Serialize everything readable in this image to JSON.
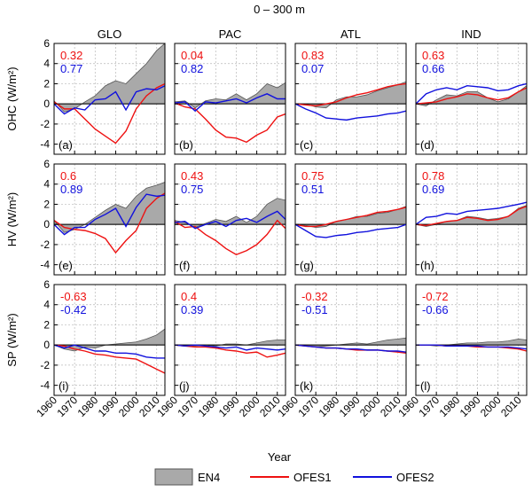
{
  "figure_title": "0 – 300 m",
  "xlabel": "Year",
  "colors": {
    "EN4_fill": "#a9a9a9",
    "EN4_edge": "#555555",
    "OFES1": "#ee1111",
    "OFES2": "#1111dd",
    "zero": "#000000",
    "grid": "#b8b8b8"
  },
  "legend": {
    "placement": "bottom-center",
    "en4": "EN4",
    "ofes1": "OFES1",
    "ofes2": "OFES2"
  },
  "chart_data": {
    "type": "line",
    "grid": true,
    "columns": [
      "GLO",
      "PAC",
      "ATL",
      "IND"
    ],
    "rows": [
      {
        "ylabel": "OHC (W/m²)",
        "ylim": [
          -5,
          6
        ],
        "yticks": [
          -4,
          -2,
          0,
          2,
          4,
          6
        ]
      },
      {
        "ylabel": "HV (W/m²)",
        "ylim": [
          -5,
          6
        ],
        "yticks": [
          -4,
          -2,
          0,
          2,
          4,
          6
        ]
      },
      {
        "ylabel": "SP (W/m²)",
        "ylim": [
          -5,
          6
        ],
        "yticks": [
          -4,
          -2,
          0,
          2,
          4,
          6
        ]
      }
    ],
    "x": [
      1960,
      1965,
      1970,
      1975,
      1980,
      1985,
      1990,
      1995,
      2000,
      2005,
      2010,
      2014
    ],
    "xlim": [
      1960,
      2014
    ],
    "xticks": [
      1960,
      1970,
      1980,
      1990,
      2000,
      2010
    ],
    "panels": [
      {
        "label": "(a)",
        "r1": "0.32",
        "r2": "0.77",
        "EN4": [
          0.3,
          -0.8,
          -0.5,
          0.2,
          0.8,
          1.8,
          2.3,
          2.0,
          3.0,
          4.0,
          5.3,
          6.0
        ],
        "OFES1": [
          0.2,
          -0.5,
          -0.5,
          -1.5,
          -2.5,
          -3.2,
          -3.9,
          -2.7,
          -0.5,
          0.8,
          1.6,
          2.0
        ],
        "OFES2": [
          0.0,
          -1.0,
          -0.4,
          -0.6,
          0.4,
          0.5,
          1.2,
          -0.6,
          1.2,
          1.5,
          1.4,
          1.8
        ]
      },
      {
        "label": "(b)",
        "r1": "0.04",
        "r2": "0.82",
        "EN4": [
          0.2,
          0.3,
          -0.4,
          0.3,
          0.5,
          0.4,
          1.0,
          0.4,
          1.0,
          2.0,
          1.6,
          2.1
        ],
        "OFES1": [
          0.1,
          -0.3,
          -0.5,
          -1.5,
          -2.6,
          -3.3,
          -3.4,
          -3.8,
          -3.1,
          -2.6,
          -1.3,
          -1.0
        ],
        "OFES2": [
          0.1,
          0.2,
          -0.7,
          0.2,
          0.1,
          0.3,
          0.5,
          0.1,
          0.6,
          1.0,
          0.5,
          0.5
        ]
      },
      {
        "label": "(c)",
        "r1": "0.83",
        "r2": "0.07",
        "EN4": [
          0.0,
          0.0,
          -0.3,
          -0.4,
          0.4,
          0.7,
          0.7,
          0.9,
          1.3,
          1.6,
          1.9,
          2.2
        ],
        "OFES1": [
          0.0,
          -0.1,
          -0.2,
          0.0,
          0.2,
          0.6,
          0.9,
          1.1,
          1.4,
          1.7,
          1.9,
          2.0
        ],
        "OFES2": [
          0.0,
          -0.5,
          -0.9,
          -1.4,
          -1.5,
          -1.6,
          -1.4,
          -1.3,
          -1.2,
          -1.0,
          -0.9,
          -0.7
        ]
      },
      {
        "label": "(d)",
        "r1": "0.63",
        "r2": "0.66",
        "EN4": [
          0.0,
          -0.2,
          0.4,
          0.9,
          0.8,
          1.2,
          1.2,
          0.6,
          0.2,
          0.5,
          1.2,
          1.8
        ],
        "OFES1": [
          0.0,
          0.1,
          0.2,
          0.5,
          0.7,
          1.0,
          0.9,
          0.6,
          0.4,
          0.6,
          1.2,
          1.6
        ],
        "OFES2": [
          0.0,
          1.0,
          1.4,
          1.6,
          1.4,
          1.8,
          1.7,
          1.6,
          1.3,
          1.4,
          1.8,
          2.0
        ]
      },
      {
        "label": "(e)",
        "r1": "0.6",
        "r2": "0.89",
        "EN4": [
          0.4,
          -0.8,
          -0.5,
          0.0,
          0.7,
          1.4,
          2.0,
          1.6,
          2.8,
          3.6,
          3.9,
          4.2
        ],
        "OFES1": [
          0.4,
          -0.3,
          -0.5,
          -0.6,
          -0.9,
          -1.4,
          -2.8,
          -1.6,
          -0.6,
          1.6,
          2.6,
          3.1
        ],
        "OFES2": [
          0.0,
          -1.0,
          -0.3,
          -0.3,
          0.5,
          1.0,
          1.6,
          -0.2,
          1.7,
          3.0,
          2.8,
          2.9
        ]
      },
      {
        "label": "(f)",
        "r1": "0.43",
        "r2": "0.75",
        "EN4": [
          0.4,
          0.2,
          -0.3,
          0.1,
          0.5,
          0.3,
          0.8,
          0.2,
          0.8,
          2.0,
          2.6,
          2.4
        ],
        "OFES1": [
          0.3,
          -0.3,
          -0.2,
          -1.0,
          -1.6,
          -2.4,
          -3.0,
          -2.6,
          -2.0,
          -1.0,
          0.4,
          -0.4
        ],
        "OFES2": [
          0.2,
          0.3,
          -0.4,
          0.0,
          0.3,
          -0.2,
          0.4,
          0.6,
          0.2,
          0.8,
          1.3,
          0.5
        ]
      },
      {
        "label": "(g)",
        "r1": "0.75",
        "r2": "0.51",
        "EN4": [
          0.0,
          -0.1,
          -0.3,
          -0.2,
          0.3,
          0.5,
          0.8,
          0.8,
          1.1,
          1.2,
          1.5,
          1.8
        ],
        "OFES1": [
          0.0,
          -0.2,
          -0.2,
          0.0,
          0.3,
          0.5,
          0.7,
          0.9,
          1.2,
          1.3,
          1.5,
          1.7
        ],
        "OFES2": [
          0.0,
          -0.6,
          -1.2,
          -1.3,
          -1.1,
          -1.0,
          -0.8,
          -0.7,
          -0.5,
          -0.4,
          -0.3,
          0.0
        ]
      },
      {
        "label": "(h)",
        "r1": "0.78",
        "r2": "0.69",
        "EN4": [
          0.0,
          -0.2,
          0.0,
          0.3,
          0.4,
          0.8,
          0.7,
          0.5,
          0.6,
          0.8,
          1.6,
          1.9
        ],
        "OFES1": [
          0.0,
          -0.1,
          0.1,
          0.3,
          0.4,
          0.7,
          0.6,
          0.4,
          0.5,
          0.8,
          1.5,
          1.8
        ],
        "OFES2": [
          0.0,
          0.7,
          0.8,
          1.1,
          1.0,
          1.3,
          1.4,
          1.5,
          1.6,
          1.8,
          2.0,
          2.2
        ]
      },
      {
        "label": "(i)",
        "r1": "-0.63",
        "r2": "-0.42",
        "EN4": [
          0.0,
          -0.4,
          -0.6,
          -0.2,
          -0.3,
          0.0,
          0.1,
          0.2,
          0.3,
          0.6,
          1.0,
          1.6
        ],
        "OFES1": [
          0.0,
          -0.1,
          -0.4,
          -0.6,
          -0.9,
          -1.0,
          -1.2,
          -1.3,
          -1.4,
          -1.9,
          -2.4,
          -2.8
        ],
        "OFES2": [
          0.0,
          -0.3,
          0.0,
          -0.3,
          -0.6,
          -0.6,
          -0.8,
          -0.8,
          -0.9,
          -1.2,
          -1.3,
          -1.3
        ]
      },
      {
        "label": "(j)",
        "r1": "0.4",
        "r2": "0.39",
        "EN4": [
          0.0,
          0.0,
          -0.1,
          0.0,
          -0.1,
          0.1,
          0.1,
          0.0,
          0.2,
          0.4,
          0.5,
          0.5
        ],
        "OFES1": [
          0.0,
          -0.1,
          -0.2,
          -0.2,
          -0.3,
          -0.5,
          -0.6,
          -0.8,
          -0.7,
          -1.2,
          -1.0,
          -0.8
        ],
        "OFES2": [
          0.0,
          -0.1,
          0.0,
          -0.1,
          -0.2,
          -0.3,
          -0.2,
          -0.5,
          -0.3,
          -0.4,
          -0.5,
          -0.4
        ]
      },
      {
        "label": "(k)",
        "r1": "-0.32",
        "r2": "-0.51",
        "EN4": [
          0.0,
          -0.1,
          -0.2,
          -0.1,
          0.0,
          0.1,
          0.2,
          0.1,
          0.3,
          0.5,
          0.6,
          0.7
        ],
        "OFES1": [
          0.0,
          -0.1,
          -0.2,
          -0.3,
          -0.3,
          -0.4,
          -0.5,
          -0.5,
          -0.5,
          -0.6,
          -0.7,
          -0.8
        ],
        "OFES2": [
          0.0,
          -0.1,
          -0.2,
          -0.3,
          -0.3,
          -0.4,
          -0.4,
          -0.5,
          -0.5,
          -0.6,
          -0.6,
          -0.7
        ]
      },
      {
        "label": "(l)",
        "r1": "-0.72",
        "r2": "-0.66",
        "EN4": [
          0.0,
          0.0,
          -0.1,
          0.0,
          0.1,
          0.2,
          0.2,
          0.3,
          0.3,
          0.4,
          0.6,
          0.5
        ],
        "OFES1": [
          0.0,
          0.0,
          0.0,
          -0.1,
          -0.1,
          -0.1,
          -0.2,
          -0.2,
          -0.2,
          -0.3,
          -0.4,
          -0.6
        ],
        "OFES2": [
          0.0,
          0.0,
          0.0,
          -0.1,
          -0.1,
          -0.1,
          -0.1,
          -0.2,
          -0.2,
          -0.2,
          -0.3,
          -0.4
        ]
      }
    ]
  }
}
